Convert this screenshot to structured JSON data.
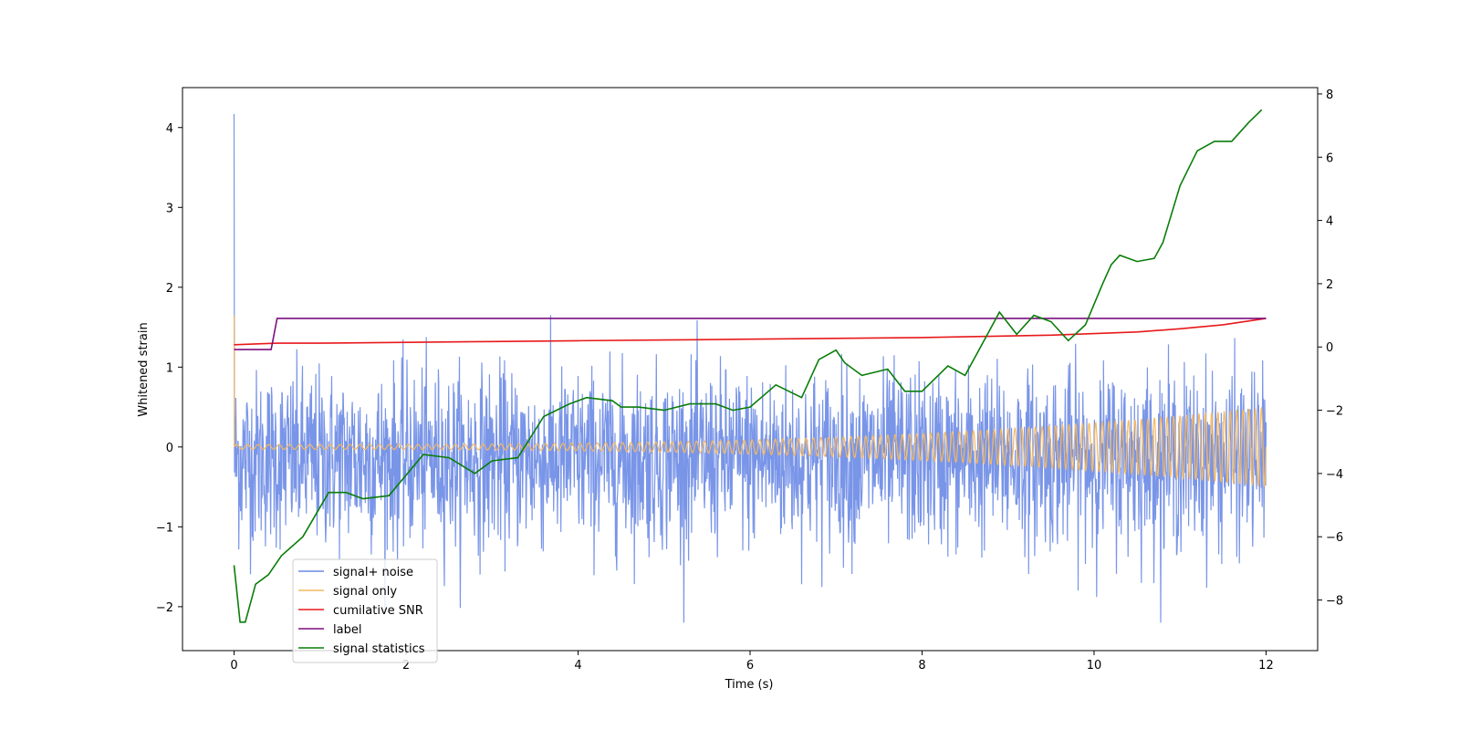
{
  "chart_data": {
    "type": "line",
    "xlabel": "Time (s)",
    "ylabel": "Whitened strain",
    "ylabel_right": "",
    "xlim": [
      -0.6,
      12.6
    ],
    "ylim": [
      -2.55,
      4.5
    ],
    "ylim_right": [
      -9.6,
      8.2
    ],
    "x_ticks": [
      0,
      2,
      4,
      6,
      8,
      10,
      12
    ],
    "x_tick_labels": [
      "0",
      "2",
      "4",
      "6",
      "8",
      "10",
      "12"
    ],
    "y_ticks": [
      -2,
      -1,
      0,
      1,
      2,
      3,
      4
    ],
    "y_tick_labels": [
      "−2",
      "−1",
      "0",
      "1",
      "2",
      "3",
      "4"
    ],
    "y_right_ticks": [
      -8,
      -6,
      -4,
      -2,
      0,
      2,
      4,
      6,
      8
    ],
    "y_right_tick_labels": [
      "−8",
      "−6",
      "−4",
      "−2",
      "0",
      "2",
      "4",
      "6",
      "8"
    ],
    "grid": false,
    "legend_position": "lower-left",
    "series": [
      {
        "name": "signal+ noise",
        "color": "#6a89e6",
        "axis": "left",
        "kind": "noisy",
        "duration": 12,
        "initial_spike": 4.17,
        "mean": -0.15,
        "std": 0.55,
        "min": -2.2,
        "max": 2.0
      },
      {
        "name": "signal only",
        "color": "#f5b860",
        "axis": "left",
        "kind": "chirp",
        "duration": 12,
        "start_amplitude": 0.03,
        "end_amplitude": 0.5,
        "initial_spike": 1.65
      },
      {
        "name": "cumilative SNR",
        "color": "#e8191b",
        "axis": "left",
        "x": [
          0,
          0.5,
          1,
          2,
          3,
          4,
          5,
          6,
          7,
          8,
          9,
          9.5,
          10,
          10.5,
          11,
          11.5,
          12
        ],
        "y": [
          1.28,
          1.3,
          1.3,
          1.31,
          1.32,
          1.33,
          1.34,
          1.35,
          1.36,
          1.37,
          1.39,
          1.4,
          1.42,
          1.44,
          1.48,
          1.53,
          1.61
        ]
      },
      {
        "name": "label",
        "color": "#7b0f7f",
        "axis": "left",
        "x": [
          0,
          0.43,
          0.5,
          12
        ],
        "y": [
          1.22,
          1.22,
          1.61,
          1.61
        ]
      },
      {
        "name": "signal statistics",
        "color": "#0a7d0a",
        "axis": "right",
        "x": [
          0,
          0.07,
          0.13,
          0.25,
          0.4,
          0.55,
          0.8,
          1.1,
          1.3,
          1.5,
          1.8,
          2.2,
          2.5,
          2.8,
          3.0,
          3.3,
          3.6,
          3.9,
          4.1,
          4.4,
          4.5,
          4.7,
          5.0,
          5.3,
          5.6,
          5.8,
          6.0,
          6.3,
          6.6,
          6.8,
          7.0,
          7.1,
          7.3,
          7.6,
          7.8,
          8.0,
          8.3,
          8.5,
          8.7,
          8.9,
          9.1,
          9.3,
          9.5,
          9.7,
          9.9,
          10.1,
          10.2,
          10.3,
          10.5,
          10.7,
          10.8,
          11.0,
          11.2,
          11.4,
          11.6,
          11.8,
          11.95
        ],
        "y": [
          -6.9,
          -8.7,
          -8.7,
          -7.5,
          -7.2,
          -6.6,
          -6.0,
          -4.6,
          -4.6,
          -4.8,
          -4.7,
          -3.4,
          -3.5,
          -4.0,
          -3.6,
          -3.5,
          -2.2,
          -1.8,
          -1.6,
          -1.7,
          -1.9,
          -1.9,
          -2.0,
          -1.8,
          -1.8,
          -2.0,
          -1.9,
          -1.2,
          -1.6,
          -0.4,
          -0.1,
          -0.5,
          -0.9,
          -0.7,
          -1.4,
          -1.4,
          -0.6,
          -0.9,
          0.1,
          1.1,
          0.4,
          1.0,
          0.8,
          0.2,
          0.7,
          2.0,
          2.6,
          2.9,
          2.7,
          2.8,
          3.3,
          5.1,
          6.2,
          6.5,
          6.5,
          7.1,
          7.5
        ]
      }
    ]
  }
}
